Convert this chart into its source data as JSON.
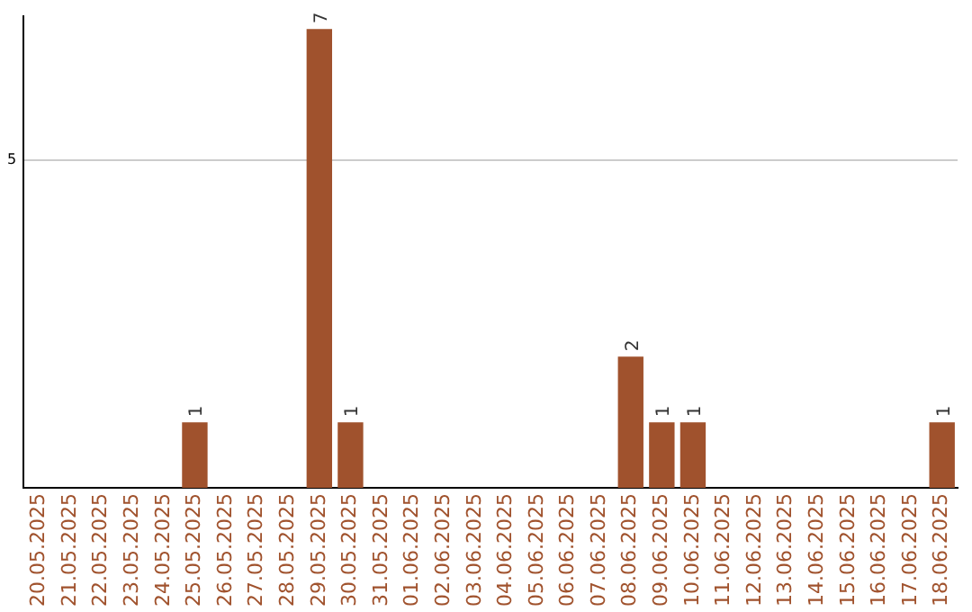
{
  "chart_data": {
    "type": "bar",
    "categories": [
      "20.05.2025",
      "21.05.2025",
      "22.05.2025",
      "23.05.2025",
      "24.05.2025",
      "25.05.2025",
      "26.05.2025",
      "27.05.2025",
      "28.05.2025",
      "29.05.2025",
      "30.05.2025",
      "31.05.2025",
      "01.06.2025",
      "02.06.2025",
      "03.06.2025",
      "04.06.2025",
      "05.06.2025",
      "06.06.2025",
      "07.06.2025",
      "08.06.2025",
      "09.06.2025",
      "10.06.2025",
      "11.06.2025",
      "12.06.2025",
      "13.06.2025",
      "14.06.2025",
      "15.06.2025",
      "16.06.2025",
      "17.06.2025",
      "18.06.2025"
    ],
    "values": [
      0,
      0,
      0,
      0,
      0,
      1,
      0,
      0,
      0,
      7,
      1,
      0,
      0,
      0,
      0,
      0,
      0,
      0,
      0,
      2,
      1,
      1,
      0,
      0,
      0,
      0,
      0,
      0,
      0,
      1
    ],
    "value_labels": [
      null,
      null,
      null,
      null,
      null,
      "1",
      null,
      null,
      null,
      "7",
      "1",
      null,
      null,
      null,
      null,
      null,
      null,
      null,
      null,
      "2",
      "1",
      "1",
      null,
      null,
      null,
      null,
      null,
      null,
      null,
      "1"
    ],
    "color": "#a0522d",
    "ylim": [
      0,
      7.2
    ],
    "yticks": [
      5
    ],
    "grid": "y",
    "legend": false
  }
}
